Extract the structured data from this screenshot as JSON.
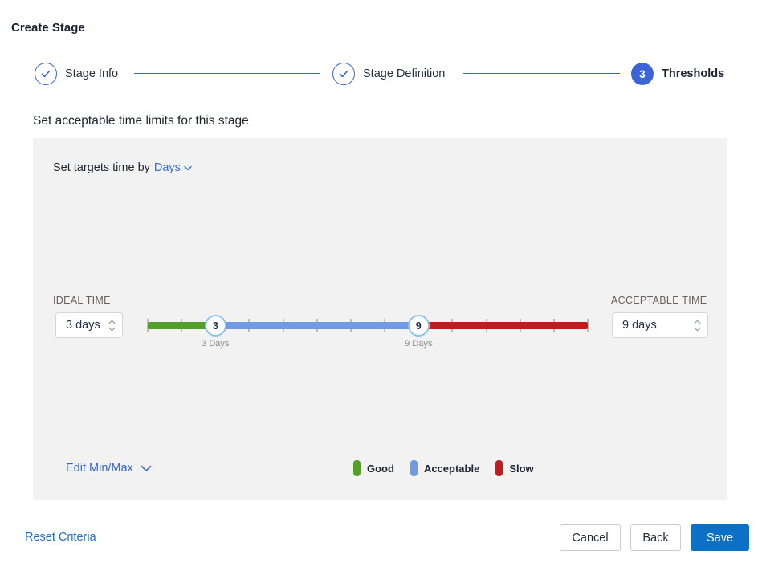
{
  "colors": {
    "accent_blue": "#3c64d8",
    "days_blue": "#3a6ce2",
    "link_blue": "#1a70c8",
    "link_blue_2": "#3565d8",
    "save_blue": "#0b70c6",
    "good_green": "#53a028",
    "acceptable_blue": "#7099e6",
    "slow_red": "#c21a1e",
    "handle_border": "#8cc2ec",
    "panel_bg": "#f2f2f2"
  },
  "title": "Create Stage",
  "stepper": {
    "steps": [
      {
        "label": "Stage Info",
        "state": "complete"
      },
      {
        "label": "Stage Definition",
        "state": "complete"
      },
      {
        "label": "Thresholds",
        "state": "active",
        "number": "3"
      }
    ]
  },
  "heading": "Set acceptable time limits for this stage",
  "panel": {
    "target_prefix": "Set targets time by",
    "target_unit": "Days",
    "ideal": {
      "label": "IDEAL TIME",
      "value": "3 days"
    },
    "acceptable": {
      "label": "ACCEPTABLE TIME",
      "value": "9 days"
    },
    "slider": {
      "min_day": 1,
      "max_day": 14,
      "handles": [
        {
          "day": 3,
          "value": "3",
          "label": "3 Days"
        },
        {
          "day": 9,
          "value": "9",
          "label": "9 Days"
        }
      ]
    },
    "edit_minmax_label": "Edit Min/Max",
    "legend": [
      {
        "label": "Good"
      },
      {
        "label": "Acceptable"
      },
      {
        "label": "Slow"
      }
    ]
  },
  "footer": {
    "reset_label": "Reset Criteria",
    "cancel_label": "Cancel",
    "back_label": "Back",
    "save_label": "Save"
  }
}
